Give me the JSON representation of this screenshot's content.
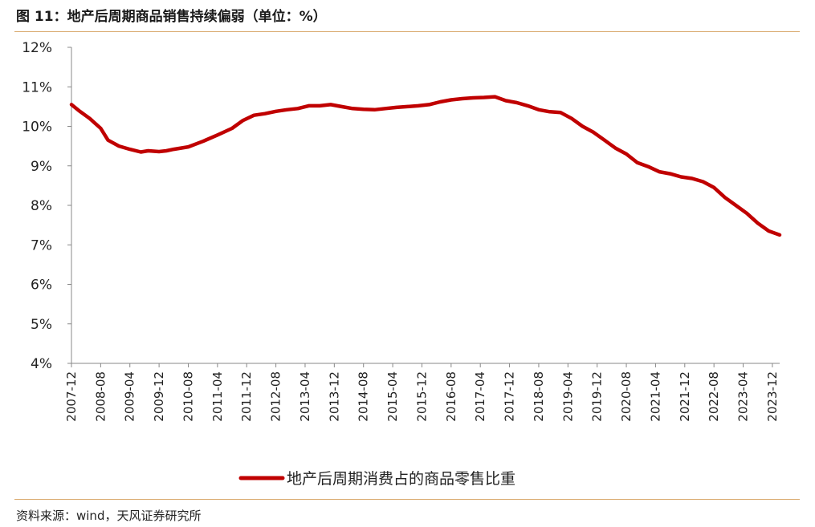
{
  "header": {
    "title": "图 11：地产后周期商品销售持续偏弱（单位：%）"
  },
  "footer": {
    "source": "资料来源：wind，天风证券研究所"
  },
  "colors": {
    "series": "#c00000",
    "axis": "#888888",
    "rule": "#d9a86b"
  },
  "chart_data": {
    "type": "line",
    "title": "图 11：地产后周期商品销售持续偏弱（单位：%）",
    "xlabel": "",
    "ylabel": "",
    "ylim": [
      4,
      12
    ],
    "y_unit": "%",
    "y_ticks": [
      4,
      5,
      6,
      7,
      8,
      9,
      10,
      11,
      12
    ],
    "x_range": [
      "2007-12",
      "2024-02"
    ],
    "x_tick_labels": [
      "2007-12",
      "2008-08",
      "2009-04",
      "2009-12",
      "2010-08",
      "2011-04",
      "2011-12",
      "2012-08",
      "2013-04",
      "2013-12",
      "2014-08",
      "2015-04",
      "2015-12",
      "2016-08",
      "2017-04",
      "2017-12",
      "2018-08",
      "2019-04",
      "2019-12",
      "2020-08",
      "2021-04",
      "2021-12",
      "2022-08",
      "2023-04",
      "2023-12"
    ],
    "grid": false,
    "legend_position": "bottom-center",
    "series": [
      {
        "name": "地产后周期消费占的商品零售比重",
        "x": [
          "2007-12",
          "2008-02",
          "2008-05",
          "2008-08",
          "2008-10",
          "2009-01",
          "2009-04",
          "2009-07",
          "2009-09",
          "2009-12",
          "2010-02",
          "2010-04",
          "2010-08",
          "2010-12",
          "2011-04",
          "2011-08",
          "2011-11",
          "2012-02",
          "2012-05",
          "2012-08",
          "2012-11",
          "2013-02",
          "2013-05",
          "2013-08",
          "2013-11",
          "2014-02",
          "2014-05",
          "2014-08",
          "2014-11",
          "2015-02",
          "2015-05",
          "2015-08",
          "2015-11",
          "2016-02",
          "2016-05",
          "2016-08",
          "2016-11",
          "2017-02",
          "2017-05",
          "2017-08",
          "2017-11",
          "2018-02",
          "2018-05",
          "2018-08",
          "2018-11",
          "2019-02",
          "2019-05",
          "2019-08",
          "2019-11",
          "2020-02",
          "2020-05",
          "2020-08",
          "2020-11",
          "2021-02",
          "2021-05",
          "2021-08",
          "2021-11",
          "2022-02",
          "2022-05",
          "2022-08",
          "2022-11",
          "2023-02",
          "2023-05",
          "2023-08",
          "2023-11",
          "2024-02"
        ],
        "values": [
          10.55,
          10.4,
          10.2,
          9.95,
          9.65,
          9.5,
          9.42,
          9.35,
          9.38,
          9.36,
          9.38,
          9.42,
          9.48,
          9.62,
          9.78,
          9.95,
          10.15,
          10.28,
          10.32,
          10.38,
          10.42,
          10.45,
          10.52,
          10.52,
          10.55,
          10.5,
          10.45,
          10.43,
          10.42,
          10.45,
          10.48,
          10.5,
          10.52,
          10.55,
          10.62,
          10.67,
          10.7,
          10.72,
          10.73,
          10.75,
          10.65,
          10.6,
          10.52,
          10.42,
          10.37,
          10.35,
          10.2,
          10.0,
          9.85,
          9.65,
          9.45,
          9.3,
          9.08,
          8.98,
          8.85,
          8.8,
          8.72,
          8.68,
          8.6,
          8.45,
          8.2,
          8.0,
          7.8,
          7.55,
          7.35,
          7.25
        ]
      }
    ]
  }
}
